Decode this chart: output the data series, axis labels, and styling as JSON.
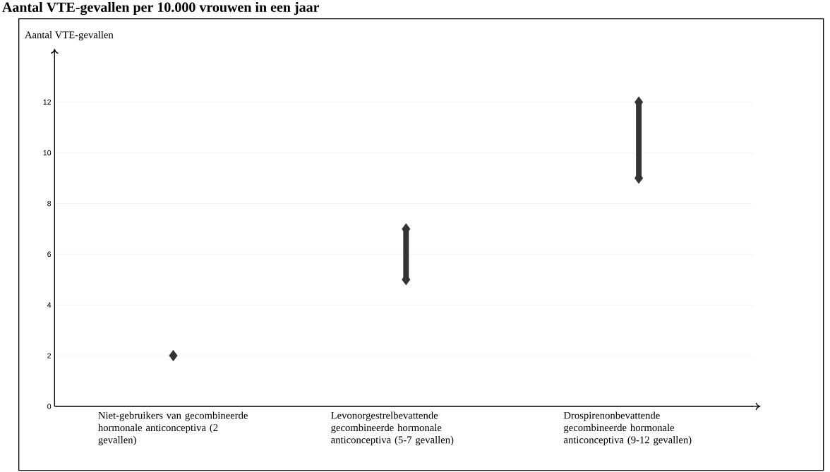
{
  "chart_data": {
    "type": "bar",
    "title": "Aantal VTE-gevallen per 10.000 vrouwen in een jaar",
    "ylabel": "Aantal VTE-gevallen",
    "categories": [
      "Niet-gebruikers van gecombineerde hormonale anticonceptiva (2 gevallen)",
      "Levonorgestrelbevattende gecombineerde hormonale anticonceptiva (5-7 gevallen)",
      "Drospirenonbevattende gecombineerde hormonale anticonceptiva (9-12 gevallen)"
    ],
    "series": [
      {
        "color": "#333333",
        "base": [
          null,
          5,
          9
        ],
        "values": [
          null,
          2,
          3
        ]
      },
      {
        "type": "scatter",
        "color": "#333333",
        "values": [
          2,
          5,
          9
        ]
      },
      {
        "type": "scatter",
        "color": "#333333",
        "values": [
          null,
          7,
          12
        ]
      }
    ],
    "marker": "diamond",
    "ylim": [
      0,
      13.8
    ],
    "yticks": [
      0,
      2,
      4,
      6,
      8,
      10,
      12
    ],
    "grid": "y"
  }
}
